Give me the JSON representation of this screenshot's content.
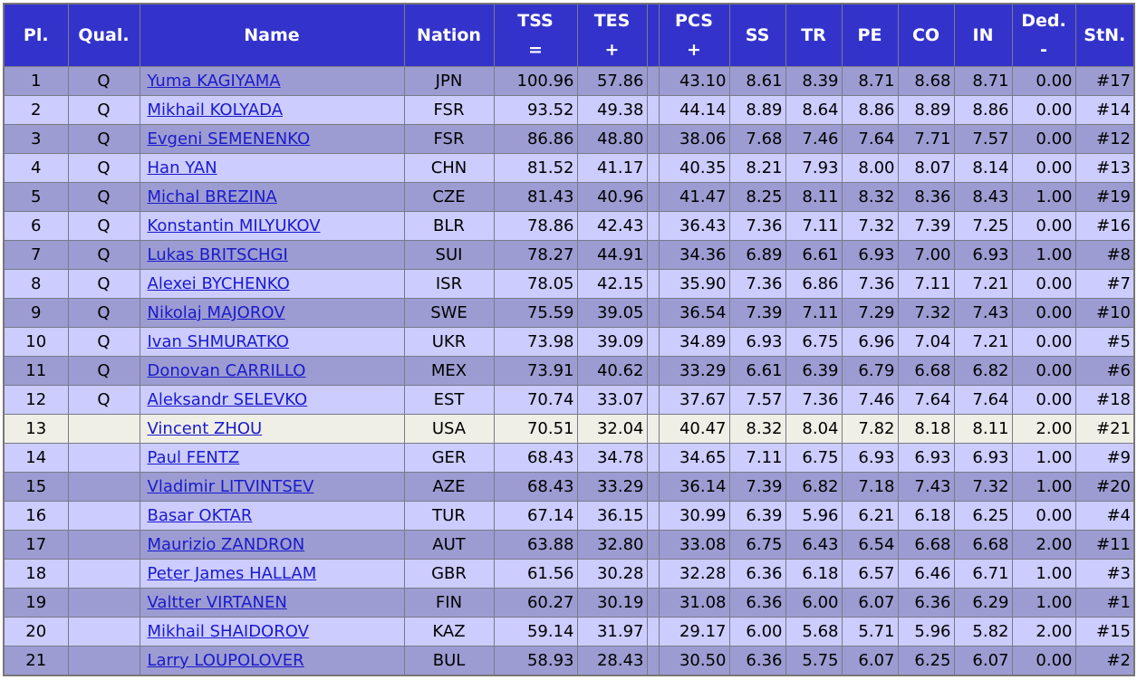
{
  "table": {
    "columns": [
      {
        "title": "Pl."
      },
      {
        "title": "Qual."
      },
      {
        "title": "Name"
      },
      {
        "title": "Nation"
      },
      {
        "title": "TSS",
        "sign": "="
      },
      {
        "title": "TES",
        "sign": "+"
      },
      {
        "title": "PCS",
        "sign": "+"
      },
      {
        "title": "SS"
      },
      {
        "title": "TR"
      },
      {
        "title": "PE"
      },
      {
        "title": "CO"
      },
      {
        "title": "IN"
      },
      {
        "title": "Ded.",
        "sign": "-"
      },
      {
        "title": "StN."
      }
    ],
    "rows": [
      {
        "pl": 1,
        "qual": "Q",
        "name": "Yuma KAGIYAMA",
        "nation": "JPN",
        "tss": "100.96",
        "tes": "57.86",
        "pcs": "43.10",
        "ss": "8.61",
        "tr": "8.39",
        "pe": "8.71",
        "co": "8.68",
        "in": "8.71",
        "ded": "0.00",
        "stn": "#17"
      },
      {
        "pl": 2,
        "qual": "Q",
        "name": "Mikhail KOLYADA",
        "nation": "FSR",
        "tss": "93.52",
        "tes": "49.38",
        "pcs": "44.14",
        "ss": "8.89",
        "tr": "8.64",
        "pe": "8.86",
        "co": "8.89",
        "in": "8.86",
        "ded": "0.00",
        "stn": "#14"
      },
      {
        "pl": 3,
        "qual": "Q",
        "name": "Evgeni SEMENENKO",
        "nation": "FSR",
        "tss": "86.86",
        "tes": "48.80",
        "pcs": "38.06",
        "ss": "7.68",
        "tr": "7.46",
        "pe": "7.64",
        "co": "7.71",
        "in": "7.57",
        "ded": "0.00",
        "stn": "#12"
      },
      {
        "pl": 4,
        "qual": "Q",
        "name": "Han YAN",
        "nation": "CHN",
        "tss": "81.52",
        "tes": "41.17",
        "pcs": "40.35",
        "ss": "8.21",
        "tr": "7.93",
        "pe": "8.00",
        "co": "8.07",
        "in": "8.14",
        "ded": "0.00",
        "stn": "#13"
      },
      {
        "pl": 5,
        "qual": "Q",
        "name": "Michal BREZINA",
        "nation": "CZE",
        "tss": "81.43",
        "tes": "40.96",
        "pcs": "41.47",
        "ss": "8.25",
        "tr": "8.11",
        "pe": "8.32",
        "co": "8.36",
        "in": "8.43",
        "ded": "1.00",
        "stn": "#19"
      },
      {
        "pl": 6,
        "qual": "Q",
        "name": "Konstantin MILYUKOV",
        "nation": "BLR",
        "tss": "78.86",
        "tes": "42.43",
        "pcs": "36.43",
        "ss": "7.36",
        "tr": "7.11",
        "pe": "7.32",
        "co": "7.39",
        "in": "7.25",
        "ded": "0.00",
        "stn": "#16"
      },
      {
        "pl": 7,
        "qual": "Q",
        "name": "Lukas BRITSCHGI",
        "nation": "SUI",
        "tss": "78.27",
        "tes": "44.91",
        "pcs": "34.36",
        "ss": "6.89",
        "tr": "6.61",
        "pe": "6.93",
        "co": "7.00",
        "in": "6.93",
        "ded": "1.00",
        "stn": "#8"
      },
      {
        "pl": 8,
        "qual": "Q",
        "name": "Alexei BYCHENKO",
        "nation": "ISR",
        "tss": "78.05",
        "tes": "42.15",
        "pcs": "35.90",
        "ss": "7.36",
        "tr": "6.86",
        "pe": "7.36",
        "co": "7.11",
        "in": "7.21",
        "ded": "0.00",
        "stn": "#7"
      },
      {
        "pl": 9,
        "qual": "Q",
        "name": "Nikolaj MAJOROV",
        "nation": "SWE",
        "tss": "75.59",
        "tes": "39.05",
        "pcs": "36.54",
        "ss": "7.39",
        "tr": "7.11",
        "pe": "7.29",
        "co": "7.32",
        "in": "7.43",
        "ded": "0.00",
        "stn": "#10"
      },
      {
        "pl": 10,
        "qual": "Q",
        "name": "Ivan SHMURATKO",
        "nation": "UKR",
        "tss": "73.98",
        "tes": "39.09",
        "pcs": "34.89",
        "ss": "6.93",
        "tr": "6.75",
        "pe": "6.96",
        "co": "7.04",
        "in": "7.21",
        "ded": "0.00",
        "stn": "#5"
      },
      {
        "pl": 11,
        "qual": "Q",
        "name": "Donovan CARRILLO",
        "nation": "MEX",
        "tss": "73.91",
        "tes": "40.62",
        "pcs": "33.29",
        "ss": "6.61",
        "tr": "6.39",
        "pe": "6.79",
        "co": "6.68",
        "in": "6.82",
        "ded": "0.00",
        "stn": "#6"
      },
      {
        "pl": 12,
        "qual": "Q",
        "name": "Aleksandr SELEVKO",
        "nation": "EST",
        "tss": "70.74",
        "tes": "33.07",
        "pcs": "37.67",
        "ss": "7.57",
        "tr": "7.36",
        "pe": "7.46",
        "co": "7.64",
        "in": "7.64",
        "ded": "0.00",
        "stn": "#18"
      },
      {
        "pl": 13,
        "name": "Vincent ZHOU",
        "nation": "USA",
        "tss": "70.51",
        "tes": "32.04",
        "pcs": "40.47",
        "ss": "8.32",
        "tr": "8.04",
        "pe": "7.82",
        "co": "8.18",
        "in": "8.11",
        "ded": "2.00",
        "stn": "#21"
      },
      {
        "pl": 14,
        "name": "Paul FENTZ",
        "nation": "GER",
        "tss": "68.43",
        "tes": "34.78",
        "pcs": "34.65",
        "ss": "7.11",
        "tr": "6.75",
        "pe": "6.93",
        "co": "6.93",
        "in": "6.93",
        "ded": "1.00",
        "stn": "#9"
      },
      {
        "pl": 15,
        "name": "Vladimir LITVINTSEV",
        "nation": "AZE",
        "tss": "68.43",
        "tes": "33.29",
        "pcs": "36.14",
        "ss": "7.39",
        "tr": "6.82",
        "pe": "7.18",
        "co": "7.43",
        "in": "7.32",
        "ded": "1.00",
        "stn": "#20"
      },
      {
        "pl": 16,
        "name": "Basar OKTAR",
        "nation": "TUR",
        "tss": "67.14",
        "tes": "36.15",
        "pcs": "30.99",
        "ss": "6.39",
        "tr": "5.96",
        "pe": "6.21",
        "co": "6.18",
        "in": "6.25",
        "ded": "0.00",
        "stn": "#4"
      },
      {
        "pl": 17,
        "name": "Maurizio ZANDRON",
        "nation": "AUT",
        "tss": "63.88",
        "tes": "32.80",
        "pcs": "33.08",
        "ss": "6.75",
        "tr": "6.43",
        "pe": "6.54",
        "co": "6.68",
        "in": "6.68",
        "ded": "2.00",
        "stn": "#11"
      },
      {
        "pl": 18,
        "name": "Peter James HALLAM",
        "nation": "GBR",
        "tss": "61.56",
        "tes": "30.28",
        "pcs": "32.28",
        "ss": "6.36",
        "tr": "6.18",
        "pe": "6.57",
        "co": "6.46",
        "in": "6.71",
        "ded": "1.00",
        "stn": "#3"
      },
      {
        "pl": 19,
        "name": "Valtter VIRTANEN",
        "nation": "FIN",
        "tss": "60.27",
        "tes": "30.19",
        "pcs": "31.08",
        "ss": "6.36",
        "tr": "6.00",
        "pe": "6.07",
        "co": "6.36",
        "in": "6.29",
        "ded": "1.00",
        "stn": "#1"
      },
      {
        "pl": 20,
        "name": "Mikhail SHAIDOROV",
        "nation": "KAZ",
        "tss": "59.14",
        "tes": "31.97",
        "pcs": "29.17",
        "ss": "6.00",
        "tr": "5.68",
        "pe": "5.71",
        "co": "5.96",
        "in": "5.82",
        "ded": "2.00",
        "stn": "#15"
      },
      {
        "pl": 21,
        "name": "Larry LOUPOLOVER",
        "nation": "BUL",
        "tss": "58.93",
        "tes": "28.43",
        "pcs": "30.50",
        "ss": "6.36",
        "tr": "5.75",
        "pe": "6.07",
        "co": "6.25",
        "in": "6.07",
        "ded": "0.00",
        "stn": "#2"
      }
    ]
  }
}
